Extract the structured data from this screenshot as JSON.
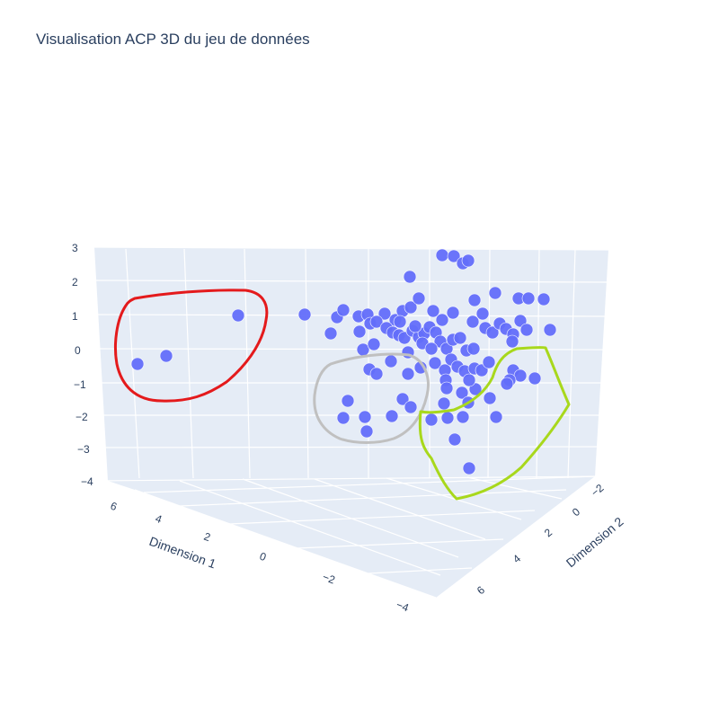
{
  "chart_data": {
    "type": "scatter",
    "title": "Visualisation ACP 3D du jeu de données",
    "axes": {
      "x": {
        "label": "Dimension 1",
        "ticks": [
          "6",
          "4",
          "2",
          "0",
          "−2",
          "−4"
        ]
      },
      "y": {
        "label": "Dimension 2",
        "ticks": [
          "−2",
          "0",
          "2",
          "4",
          "6"
        ]
      },
      "z": {
        "label": "",
        "ticks": [
          "3",
          "2",
          "1",
          "0",
          "−1",
          "−2",
          "−3",
          "−4"
        ]
      }
    },
    "marker_color": "#636efa",
    "points_screen": [
      [
        265,
        351
      ],
      [
        185,
        396
      ],
      [
        153,
        405
      ],
      [
        339,
        350
      ],
      [
        368,
        371
      ],
      [
        375,
        353
      ],
      [
        382,
        345
      ],
      [
        399,
        352
      ],
      [
        409,
        350
      ],
      [
        428,
        349
      ],
      [
        440,
        356
      ],
      [
        448,
        346
      ],
      [
        457,
        342
      ],
      [
        466,
        332
      ],
      [
        456,
        308
      ],
      [
        482,
        346
      ],
      [
        492,
        356
      ],
      [
        504,
        348
      ],
      [
        528,
        334
      ],
      [
        551,
        326
      ],
      [
        577,
        332
      ],
      [
        588,
        332
      ],
      [
        605,
        333
      ],
      [
        612,
        367
      ],
      [
        537,
        349
      ],
      [
        526,
        358
      ],
      [
        492,
        284
      ],
      [
        505,
        285
      ],
      [
        515,
        293
      ],
      [
        521,
        290
      ],
      [
        400,
        369
      ],
      [
        404,
        389
      ],
      [
        416,
        383
      ],
      [
        412,
        360
      ],
      [
        419,
        358
      ],
      [
        430,
        365
      ],
      [
        437,
        370
      ],
      [
        444,
        373
      ],
      [
        450,
        376
      ],
      [
        459,
        368
      ],
      [
        466,
        375
      ],
      [
        472,
        371
      ],
      [
        478,
        364
      ],
      [
        485,
        370
      ],
      [
        490,
        380
      ],
      [
        497,
        388
      ],
      [
        504,
        378
      ],
      [
        512,
        376
      ],
      [
        519,
        390
      ],
      [
        527,
        388
      ],
      [
        540,
        365
      ],
      [
        548,
        370
      ],
      [
        556,
        360
      ],
      [
        563,
        366
      ],
      [
        571,
        372
      ],
      [
        579,
        357
      ],
      [
        586,
        367
      ],
      [
        570,
        380
      ],
      [
        445,
        358
      ],
      [
        462,
        363
      ],
      [
        470,
        382
      ],
      [
        480,
        388
      ],
      [
        454,
        392
      ],
      [
        435,
        402
      ],
      [
        411,
        411
      ],
      [
        419,
        416
      ],
      [
        454,
        416
      ],
      [
        468,
        409
      ],
      [
        484,
        404
      ],
      [
        495,
        412
      ],
      [
        502,
        400
      ],
      [
        509,
        408
      ],
      [
        517,
        413
      ],
      [
        528,
        410
      ],
      [
        536,
        412
      ],
      [
        544,
        403
      ],
      [
        571,
        412
      ],
      [
        579,
        418
      ],
      [
        567,
        423
      ],
      [
        595,
        421
      ],
      [
        564,
        427
      ],
      [
        545,
        443
      ],
      [
        529,
        433
      ],
      [
        496,
        423
      ],
      [
        497,
        432
      ],
      [
        522,
        423
      ],
      [
        514,
        437
      ],
      [
        521,
        448
      ],
      [
        494,
        449
      ],
      [
        387,
        446
      ],
      [
        382,
        465
      ],
      [
        406,
        464
      ],
      [
        408,
        480
      ],
      [
        436,
        463
      ],
      [
        448,
        444
      ],
      [
        457,
        453
      ],
      [
        480,
        467
      ],
      [
        498,
        465
      ],
      [
        515,
        464
      ],
      [
        552,
        464
      ],
      [
        506,
        489
      ],
      [
        522,
        521
      ]
    ],
    "annotations": [
      {
        "color": "#e41a1c",
        "shape": "freehand-outline"
      },
      {
        "color": "#c0c0c0",
        "shape": "freehand-outline"
      },
      {
        "color": "#a8d81c",
        "shape": "freehand-outline"
      }
    ]
  }
}
